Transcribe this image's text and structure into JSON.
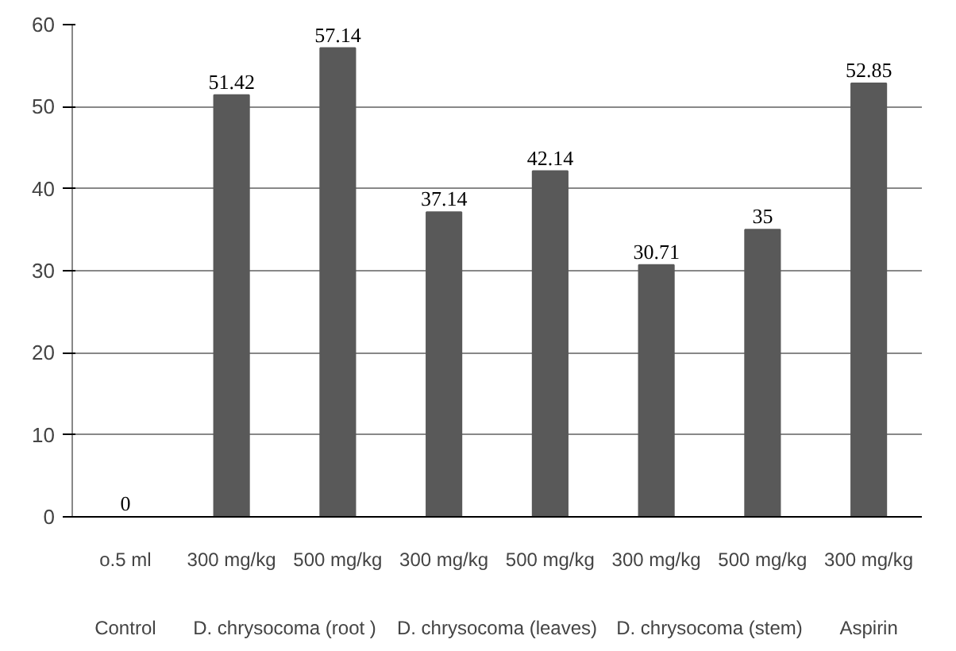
{
  "chart_data": {
    "type": "bar",
    "categories": [
      "o.5 ml",
      "300 mg/kg",
      "500 mg/kg",
      "300 mg/kg",
      "500 mg/kg",
      "300 mg/kg",
      "500 mg/kg",
      "300 mg/kg"
    ],
    "values": [
      0,
      51.42,
      57.14,
      37.14,
      42.14,
      30.71,
      35,
      52.85
    ],
    "color": "#595959",
    "ylim": [
      0,
      60
    ],
    "yticks": [
      0,
      10,
      20,
      30,
      40,
      50,
      60
    ],
    "grid": "y",
    "data_labels": true,
    "annotations": [
      "Control",
      "D. chrysocoma (root )",
      "D. chrysocoma (leaves)",
      "D. chrysocoma (stem)",
      "Aspirin"
    ]
  }
}
